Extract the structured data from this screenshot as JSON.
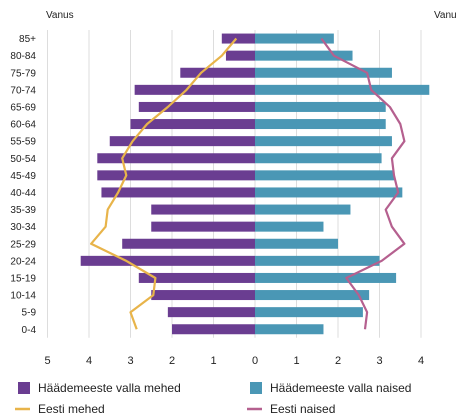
{
  "chart_data": {
    "type": "bar",
    "orientation": "horizontal-population-pyramid",
    "left_axis_title": "Vanus",
    "right_axis_title": "Vanu",
    "categories": [
      "85+",
      "80-84",
      "75-79",
      "70-74",
      "65-69",
      "60-64",
      "55-59",
      "50-54",
      "45-49",
      "40-44",
      "35-39",
      "30-34",
      "25-29",
      "20-24",
      "15-19",
      "10-14",
      "5-9",
      "0-4"
    ],
    "x_ticks": [
      "5",
      "4",
      "3",
      "2",
      "1",
      "0",
      "1",
      "2",
      "3",
      "4"
    ],
    "xlim": [
      -5,
      4
    ],
    "grid": true,
    "legend_position": "bottom",
    "series": [
      {
        "name": "Häädemeeste valla mehed",
        "kind": "bar",
        "side": "left",
        "color": "#6a3d91",
        "values": [
          0.8,
          0.7,
          1.8,
          2.9,
          2.8,
          3.0,
          3.5,
          3.8,
          3.8,
          3.7,
          2.5,
          2.5,
          3.2,
          4.2,
          2.8,
          2.5,
          2.1,
          2.0
        ]
      },
      {
        "name": "Häädemeeste valla naised",
        "kind": "bar",
        "side": "right",
        "color": "#4a97b5",
        "values": [
          1.9,
          2.35,
          3.3,
          4.2,
          3.15,
          3.15,
          3.3,
          3.05,
          3.35,
          3.55,
          2.3,
          1.65,
          2.0,
          3.0,
          3.4,
          2.75,
          2.6,
          1.65
        ]
      },
      {
        "name": "Eesti mehed",
        "kind": "line",
        "side": "left",
        "color": "#e8b44a",
        "values": [
          0.45,
          0.8,
          1.3,
          1.65,
          2.1,
          2.6,
          2.95,
          3.2,
          3.1,
          3.3,
          3.55,
          3.6,
          3.95,
          3.1,
          2.4,
          2.45,
          3.0,
          2.85
        ]
      },
      {
        "name": "Eesti naised",
        "kind": "line",
        "side": "right",
        "color": "#b5608f",
        "values": [
          1.6,
          1.9,
          2.7,
          2.8,
          3.25,
          3.5,
          3.6,
          3.3,
          3.35,
          3.45,
          3.15,
          3.3,
          3.6,
          3.05,
          2.2,
          2.5,
          2.7,
          2.65
        ]
      }
    ]
  }
}
